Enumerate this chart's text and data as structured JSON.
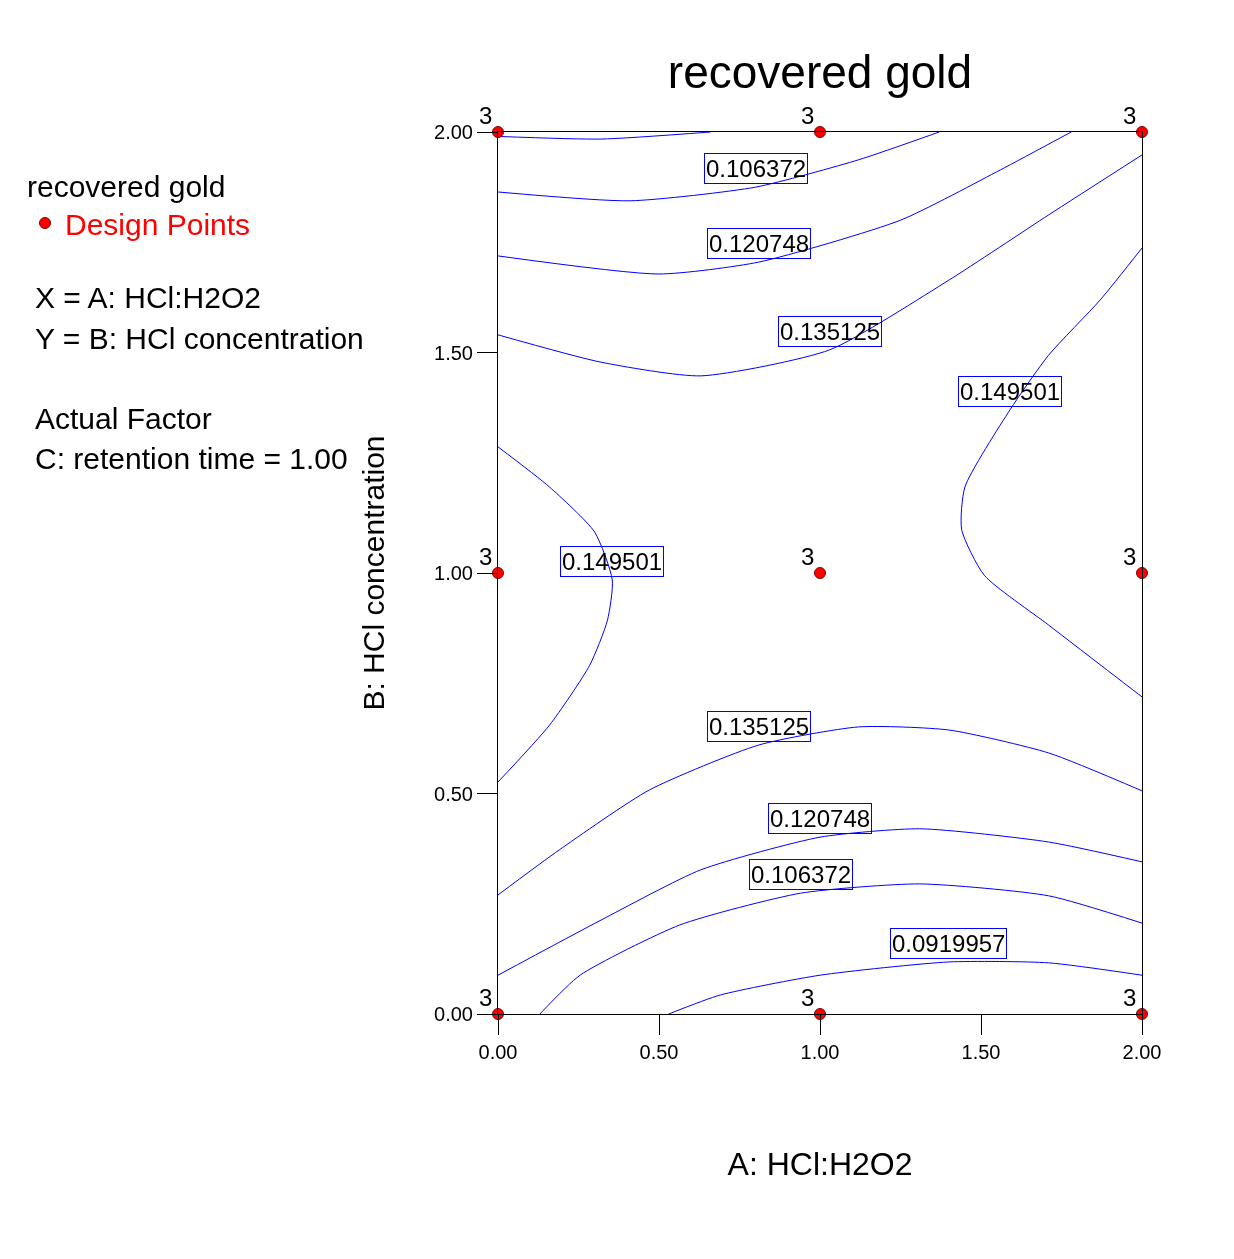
{
  "chart_data": {
    "type": "line",
    "title": "recovered gold",
    "xlabel": "A: HCl:H2O2",
    "ylabel": "B: HCl concentration",
    "legend_title": "recovered gold",
    "legend": "top left",
    "xlim": [
      0,
      2
    ],
    "ylim": [
      0,
      2
    ],
    "xticks": [
      {
        "value": 0,
        "label": "0.00"
      },
      {
        "value": 0.5,
        "label": "0.50"
      },
      {
        "value": 1,
        "label": "1.00"
      },
      {
        "value": 1.5,
        "label": "1.50"
      },
      {
        "value": 2,
        "label": "2.00"
      }
    ],
    "yticks": [
      {
        "value": 0,
        "label": "0.00"
      },
      {
        "value": 0.5,
        "label": "0.50"
      },
      {
        "value": 1,
        "label": "1.00"
      },
      {
        "value": 1.5,
        "label": "1.50"
      },
      {
        "value": 2,
        "label": "2.00"
      }
    ],
    "series": [
      {
        "color": "#0000ff",
        "x": [
          0,
          0.32,
          0.66
        ],
        "values": [
          1.99,
          1.984,
          2.0
        ]
      },
      {
        "color": "#0000ff",
        "x": [
          0,
          0.41,
          0.8,
          1.12,
          1.37
        ],
        "values": [
          1.864,
          1.844,
          1.875,
          1.937,
          2.0
        ]
      },
      {
        "color": "#0000ff",
        "x": [
          0,
          0.5,
          0.81,
          1.25,
          1.56,
          1.78
        ],
        "values": [
          1.719,
          1.678,
          1.705,
          1.8,
          1.914,
          2.0
        ]
      },
      {
        "color": "#0000ff",
        "x": [
          0,
          0.32,
          0.63,
          1.03,
          1.4,
          1.71,
          2.0
        ],
        "values": [
          1.54,
          1.478,
          1.447,
          1.506,
          1.664,
          1.812,
          1.948
        ]
      },
      {
        "color": "#0000ff",
        "x": [
          2.0,
          1.87,
          1.71,
          1.59,
          1.45,
          1.44,
          1.51,
          1.71,
          2.0
        ],
        "values": [
          1.737,
          1.619,
          1.494,
          1.37,
          1.195,
          1.098,
          0.995,
          0.882,
          0.719
        ]
      },
      {
        "color": "#0000ff",
        "x": [
          0,
          0.16,
          0.3,
          0.355,
          0.34,
          0.285,
          0.16,
          0
        ],
        "values": [
          1.286,
          1.195,
          1.093,
          0.984,
          0.893,
          0.791,
          0.655,
          0.526
        ]
      },
      {
        "color": "#0000ff",
        "x": [
          2.0,
          1.71,
          1.4,
          1.12,
          0.81,
          0.47,
          0.19,
          0
        ],
        "values": [
          0.506,
          0.592,
          0.644,
          0.651,
          0.61,
          0.508,
          0.372,
          0.27
        ]
      },
      {
        "color": "#0000ff",
        "x": [
          2.0,
          1.71,
          1.31,
          1.0,
          0.63,
          0.32,
          0
        ],
        "values": [
          0.345,
          0.39,
          0.42,
          0.401,
          0.327,
          0.213,
          0.088
        ]
      },
      {
        "color": "#0000ff",
        "x": [
          2.0,
          1.71,
          1.31,
          0.94,
          0.565,
          0.255,
          0.13
        ],
        "values": [
          0.206,
          0.268,
          0.295,
          0.274,
          0.202,
          0.088,
          0
        ]
      },
      {
        "color": "#0000ff",
        "x": [
          2.0,
          1.71,
          1.4,
          1.0,
          0.69,
          0.53
        ],
        "values": [
          0.088,
          0.116,
          0.118,
          0.088,
          0.043,
          0
        ]
      },
      {
        "type": "scatter",
        "name": "Design Points",
        "color": "#ff0000",
        "marker": "circle",
        "x": [
          0,
          1,
          2,
          0,
          1,
          2,
          0,
          1,
          2
        ],
        "values": [
          0,
          0,
          0,
          1,
          1,
          1,
          2,
          2,
          2
        ]
      }
    ],
    "annotations": [
      {
        "text": "0.106372",
        "x": 0.8,
        "y": 1.875
      },
      {
        "text": "0.120748",
        "x": 0.81,
        "y": 1.705
      },
      {
        "text": "0.135125",
        "x": 1.03,
        "y": 1.506
      },
      {
        "text": "0.149501",
        "x": 1.59,
        "y": 1.37
      },
      {
        "text": "0.149501",
        "x": 0.355,
        "y": 0.984
      },
      {
        "text": "0.135125",
        "x": 0.81,
        "y": 0.61
      },
      {
        "text": "0.120748",
        "x": 1.0,
        "y": 0.401
      },
      {
        "text": "0.106372",
        "x": 0.94,
        "y": 0.274
      },
      {
        "text": "0.0919957",
        "x": 1.4,
        "y": 0.118
      },
      {
        "text": "3",
        "x": 0,
        "y": 0
      },
      {
        "text": "3",
        "x": 1,
        "y": 0
      },
      {
        "text": "3",
        "x": 2,
        "y": 0
      },
      {
        "text": "3",
        "x": 0,
        "y": 1
      },
      {
        "text": "3",
        "x": 1,
        "y": 1
      },
      {
        "text": "3",
        "x": 2,
        "y": 1
      },
      {
        "text": "3",
        "x": 0,
        "y": 2
      },
      {
        "text": "3",
        "x": 1,
        "y": 2
      },
      {
        "text": "3",
        "x": 2,
        "y": 2
      },
      "X = A: HCl:H2O2",
      "Y = B: HCl concentration",
      "Actual Factor",
      "C: retention time = 1.00"
    ]
  }
}
